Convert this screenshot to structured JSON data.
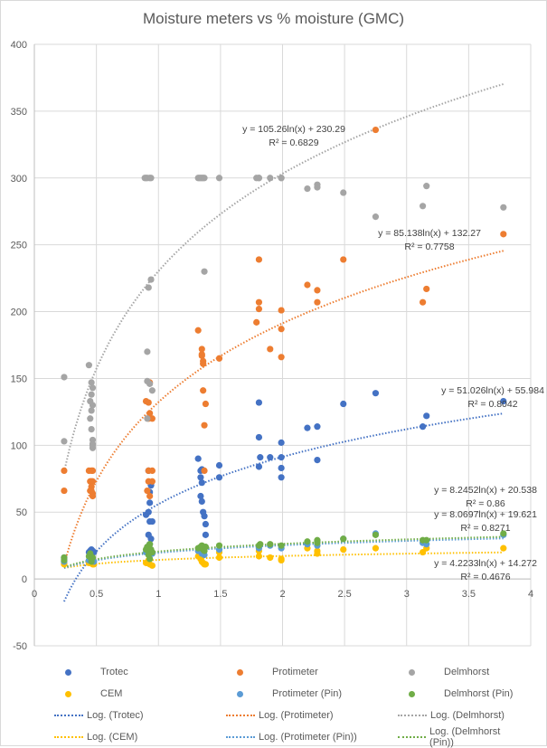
{
  "chart_data": {
    "type": "scatter",
    "title": "Moisture meters vs % moisture (GMC)",
    "xlabel": "",
    "ylabel": "",
    "xlim": [
      0,
      4
    ],
    "ylim": [
      -50,
      400
    ],
    "x_ticks": [
      0,
      0.5,
      1,
      1.5,
      2,
      2.5,
      3,
      3.5,
      4
    ],
    "x_tick_labels": [
      "0",
      "0.5",
      "1",
      "1.5",
      "2",
      "2.5",
      "3",
      "3.5",
      "4"
    ],
    "y_ticks": [
      -50,
      0,
      50,
      100,
      150,
      200,
      250,
      300,
      350,
      400
    ],
    "y_tick_labels": [
      "-50",
      "0",
      "50",
      "100",
      "150",
      "200",
      "250",
      "300",
      "350",
      "400"
    ],
    "grid": true,
    "legend_position": "bottom",
    "series": [
      {
        "name": "Trotec",
        "color": "#4472c4",
        "points": [
          [
            0.24,
            16
          ],
          [
            0.24,
            13
          ],
          [
            0.44,
            20
          ],
          [
            0.45,
            21
          ],
          [
            0.46,
            22
          ],
          [
            0.47,
            21
          ],
          [
            0.48,
            20
          ],
          [
            0.46,
            18
          ],
          [
            0.9,
            48
          ],
          [
            0.92,
            50
          ],
          [
            0.93,
            65
          ],
          [
            0.94,
            70
          ],
          [
            0.92,
            81
          ],
          [
            0.93,
            57
          ],
          [
            0.95,
            43
          ],
          [
            0.93,
            43
          ],
          [
            0.92,
            33
          ],
          [
            0.94,
            30
          ],
          [
            0.93,
            26
          ],
          [
            1.32,
            90
          ],
          [
            1.34,
            81
          ],
          [
            1.35,
            82
          ],
          [
            1.34,
            76
          ],
          [
            1.35,
            72
          ],
          [
            1.34,
            62
          ],
          [
            1.35,
            58
          ],
          [
            1.36,
            50
          ],
          [
            1.37,
            47
          ],
          [
            1.38,
            41
          ],
          [
            1.38,
            33
          ],
          [
            1.49,
            85
          ],
          [
            1.49,
            76
          ],
          [
            1.81,
            106
          ],
          [
            1.81,
            84
          ],
          [
            1.82,
            91
          ],
          [
            1.81,
            132
          ],
          [
            1.9,
            91
          ],
          [
            1.99,
            102
          ],
          [
            1.99,
            91
          ],
          [
            1.99,
            83
          ],
          [
            1.99,
            76
          ],
          [
            2.2,
            113
          ],
          [
            2.28,
            114
          ],
          [
            2.28,
            89
          ],
          [
            2.49,
            131
          ],
          [
            2.75,
            139
          ],
          [
            3.13,
            114
          ],
          [
            3.16,
            122
          ],
          [
            3.78,
            133
          ]
        ],
        "trendline": {
          "name": "Log. (Trotec)",
          "a": 51.026,
          "b": 55.984,
          "equation": "y = 51.026ln(x) + 55.984",
          "r2": "R² = 0.8042",
          "x_range": [
            0.24,
            3.78
          ]
        }
      },
      {
        "name": "Protimeter",
        "color": "#ed7d31",
        "points": [
          [
            0.24,
            81
          ],
          [
            0.24,
            66
          ],
          [
            0.44,
            81
          ],
          [
            0.46,
            81
          ],
          [
            0.47,
            81
          ],
          [
            0.45,
            73
          ],
          [
            0.46,
            73
          ],
          [
            0.47,
            73
          ],
          [
            0.45,
            66
          ],
          [
            0.46,
            69
          ],
          [
            0.47,
            64
          ],
          [
            0.47,
            62
          ],
          [
            0.46,
            66
          ],
          [
            0.9,
            133
          ],
          [
            0.92,
            132
          ],
          [
            0.93,
            147
          ],
          [
            0.92,
            120
          ],
          [
            0.93,
            124
          ],
          [
            0.95,
            120
          ],
          [
            0.92,
            81
          ],
          [
            0.95,
            81
          ],
          [
            0.92,
            73
          ],
          [
            0.95,
            73
          ],
          [
            0.91,
            66
          ],
          [
            0.93,
            62
          ],
          [
            1.32,
            186
          ],
          [
            1.35,
            172
          ],
          [
            1.35,
            167
          ],
          [
            1.36,
            163
          ],
          [
            1.36,
            161
          ],
          [
            1.35,
            168
          ],
          [
            1.36,
            141
          ],
          [
            1.38,
            131
          ],
          [
            1.37,
            115
          ],
          [
            1.37,
            81
          ],
          [
            1.49,
            165
          ],
          [
            1.79,
            192
          ],
          [
            1.81,
            239
          ],
          [
            1.81,
            202
          ],
          [
            1.81,
            207
          ],
          [
            1.9,
            172
          ],
          [
            1.99,
            201
          ],
          [
            1.99,
            187
          ],
          [
            1.99,
            166
          ],
          [
            2.2,
            220
          ],
          [
            2.28,
            216
          ],
          [
            2.28,
            207
          ],
          [
            2.49,
            239
          ],
          [
            2.75,
            336
          ],
          [
            3.13,
            207
          ],
          [
            3.16,
            217
          ],
          [
            3.78,
            258
          ]
        ],
        "trendline": {
          "name": "Log. (Protimeter)",
          "a": 85.138,
          "b": 132.27,
          "equation": "y = 85.138ln(x) + 132.27",
          "r2": "R² = 0.7758",
          "x_range": [
            0.24,
            3.78
          ]
        }
      },
      {
        "name": "Delmhorst",
        "color": "#a5a5a5",
        "points": [
          [
            0.24,
            151
          ],
          [
            0.24,
            103
          ],
          [
            0.44,
            160
          ],
          [
            0.46,
            147
          ],
          [
            0.45,
            133
          ],
          [
            0.46,
            138
          ],
          [
            0.47,
            130
          ],
          [
            0.47,
            143
          ],
          [
            0.46,
            126
          ],
          [
            0.45,
            120
          ],
          [
            0.46,
            112
          ],
          [
            0.47,
            104
          ],
          [
            0.47,
            101
          ],
          [
            0.47,
            98
          ],
          [
            0.47,
            100
          ],
          [
            0.89,
            300
          ],
          [
            0.9,
            300
          ],
          [
            0.91,
            300
          ],
          [
            0.93,
            300
          ],
          [
            0.94,
            300
          ],
          [
            0.92,
            218
          ],
          [
            0.94,
            224
          ],
          [
            0.91,
            170
          ],
          [
            0.91,
            148
          ],
          [
            0.93,
            146
          ],
          [
            0.95,
            141
          ],
          [
            0.91,
            120
          ],
          [
            1.32,
            300
          ],
          [
            1.33,
            300
          ],
          [
            1.34,
            300
          ],
          [
            1.35,
            300
          ],
          [
            1.36,
            300
          ],
          [
            1.37,
            300
          ],
          [
            1.37,
            230
          ],
          [
            1.49,
            300
          ],
          [
            1.79,
            300
          ],
          [
            1.81,
            300
          ],
          [
            1.81,
            300
          ],
          [
            1.9,
            300
          ],
          [
            1.99,
            300
          ],
          [
            1.99,
            300
          ],
          [
            2.2,
            292
          ],
          [
            2.28,
            295
          ],
          [
            2.28,
            293
          ],
          [
            2.49,
            289
          ],
          [
            2.75,
            271
          ],
          [
            3.13,
            279
          ],
          [
            3.16,
            294
          ],
          [
            3.78,
            278
          ]
        ],
        "trendline": {
          "name": "Log. (Delmhorst)",
          "a": 105.26,
          "b": 230.29,
          "equation": "y = 105.26ln(x) + 230.29",
          "r2": "R² = 0.6829",
          "x_range": [
            0.24,
            3.78
          ]
        }
      },
      {
        "name": "CEM",
        "color": "#ffc000",
        "points": [
          [
            0.24,
            11
          ],
          [
            0.24,
            12
          ],
          [
            0.44,
            12
          ],
          [
            0.46,
            12
          ],
          [
            0.47,
            11
          ],
          [
            0.48,
            11
          ],
          [
            0.9,
            12
          ],
          [
            0.91,
            12
          ],
          [
            0.93,
            11
          ],
          [
            0.95,
            10
          ],
          [
            0.92,
            14
          ],
          [
            1.32,
            17
          ],
          [
            1.34,
            15
          ],
          [
            1.35,
            13
          ],
          [
            1.36,
            12
          ],
          [
            1.37,
            11
          ],
          [
            1.38,
            11
          ],
          [
            1.49,
            20
          ],
          [
            1.49,
            16
          ],
          [
            1.81,
            21
          ],
          [
            1.81,
            17
          ],
          [
            1.9,
            16
          ],
          [
            1.99,
            15
          ],
          [
            1.99,
            14
          ],
          [
            2.2,
            23
          ],
          [
            2.28,
            21
          ],
          [
            2.28,
            19
          ],
          [
            2.49,
            22
          ],
          [
            2.75,
            23
          ],
          [
            3.13,
            20
          ],
          [
            3.16,
            23
          ],
          [
            3.78,
            23
          ]
        ],
        "trendline": {
          "name": "Log. (CEM)",
          "a": 4.2233,
          "b": 14.272,
          "equation": "y = 4.2233ln(x) + 14.272",
          "r2": "R² = 0.4676",
          "x_range": [
            0.24,
            3.78
          ]
        }
      },
      {
        "name": "Protimeter (Pin)",
        "color": "#5b9bd5",
        "points": [
          [
            0.24,
            13
          ],
          [
            0.24,
            15
          ],
          [
            0.44,
            14
          ],
          [
            0.46,
            15
          ],
          [
            0.47,
            14
          ],
          [
            0.48,
            13
          ],
          [
            0.9,
            20
          ],
          [
            0.92,
            21
          ],
          [
            0.93,
            18
          ],
          [
            0.95,
            19
          ],
          [
            1.32,
            21
          ],
          [
            1.35,
            19
          ],
          [
            1.36,
            20
          ],
          [
            1.37,
            18
          ],
          [
            1.49,
            22
          ],
          [
            1.81,
            23
          ],
          [
            1.9,
            25
          ],
          [
            1.99,
            23
          ],
          [
            2.2,
            26
          ],
          [
            2.28,
            28
          ],
          [
            2.28,
            25
          ],
          [
            2.49,
            30
          ],
          [
            2.75,
            34
          ],
          [
            3.13,
            27
          ],
          [
            3.16,
            26
          ],
          [
            3.78,
            33
          ]
        ],
        "trendline": {
          "name": "Log. (Protimeter (Pin))",
          "a": 8.0697,
          "b": 19.621,
          "equation": "y = 8.0697ln(x) + 19.621",
          "r2": "R² = 0.8271",
          "x_range": [
            0.24,
            3.78
          ]
        }
      },
      {
        "name": "Delmhorst (Pin)",
        "color": "#70ad47",
        "points": [
          [
            0.24,
            14
          ],
          [
            0.24,
            16
          ],
          [
            0.44,
            17
          ],
          [
            0.45,
            19
          ],
          [
            0.46,
            15
          ],
          [
            0.47,
            16
          ],
          [
            0.46,
            13
          ],
          [
            0.9,
            22
          ],
          [
            0.91,
            24
          ],
          [
            0.93,
            26
          ],
          [
            0.94,
            22
          ],
          [
            0.95,
            20
          ],
          [
            0.92,
            18
          ],
          [
            0.93,
            15
          ],
          [
            1.32,
            23
          ],
          [
            1.34,
            24
          ],
          [
            1.35,
            25
          ],
          [
            1.36,
            22
          ],
          [
            1.37,
            21
          ],
          [
            1.38,
            24
          ],
          [
            1.49,
            25
          ],
          [
            1.81,
            25
          ],
          [
            1.82,
            26
          ],
          [
            1.9,
            26
          ],
          [
            1.99,
            25
          ],
          [
            2.2,
            28
          ],
          [
            2.28,
            27
          ],
          [
            2.28,
            29
          ],
          [
            2.49,
            30
          ],
          [
            2.75,
            33
          ],
          [
            3.13,
            29
          ],
          [
            3.16,
            29
          ],
          [
            3.78,
            34
          ]
        ],
        "trendline": {
          "name": "Log. (Delmhorst (Pin))",
          "a": 8.2452,
          "b": 20.538,
          "equation": "y = 8.2452ln(x) + 20.538",
          "r2": "R² = 0.86",
          "x_range": [
            0.24,
            3.78
          ]
        }
      }
    ],
    "legend_entries": [
      {
        "label": "Trotec",
        "kind": "marker",
        "color": "#4472c4"
      },
      {
        "label": "Protimeter",
        "kind": "marker",
        "color": "#ed7d31"
      },
      {
        "label": "Delmhorst",
        "kind": "marker",
        "color": "#a5a5a5"
      },
      {
        "label": "CEM",
        "kind": "marker",
        "color": "#ffc000"
      },
      {
        "label": "Protimeter (Pin)",
        "kind": "marker",
        "color": "#5b9bd5"
      },
      {
        "label": "Delmhorst (Pin)",
        "kind": "marker",
        "color": "#70ad47"
      },
      {
        "label": "Log. (Trotec)",
        "kind": "line",
        "color": "#4472c4"
      },
      {
        "label": "Log. (Protimeter)",
        "kind": "line",
        "color": "#ed7d31"
      },
      {
        "label": "Log. (Delmhorst)",
        "kind": "line",
        "color": "#a5a5a5"
      },
      {
        "label": "Log. (CEM)",
        "kind": "line",
        "color": "#ffc000"
      },
      {
        "label": "Log. (Protimeter (Pin))",
        "kind": "line",
        "color": "#5b9bd5"
      },
      {
        "label": "Log. (Delmhorst (Pin))",
        "kind": "line",
        "color": "#70ad47"
      }
    ]
  }
}
